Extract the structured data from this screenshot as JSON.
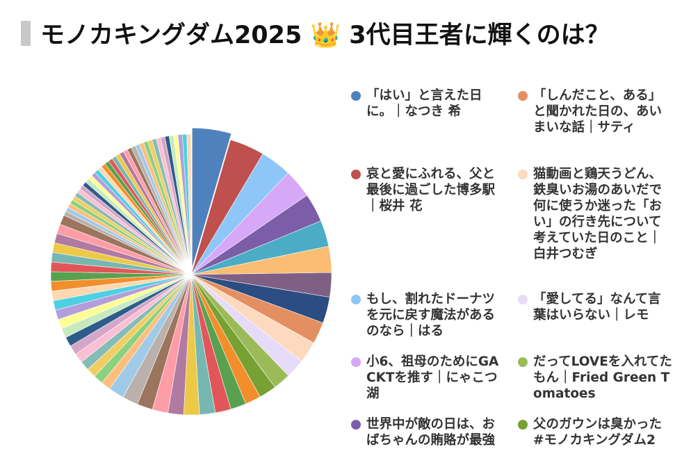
{
  "chart_data": {
    "type": "pie",
    "title": "モノカキングダム2025 👑 3代目王者に輝くのは？",
    "categories": [
      "「はい」と言えた日に。｜なつき 希",
      "哀と愛にふれる、父と最後に過ごした博多駅｜桜井 花",
      "もし、割れたドーナツを元に戻す魔法があるのなら｜はる",
      "小6、祖母のためにGACKTを推す｜にゃこつ湖",
      "世界中が敵の日は、おばちゃんの賄賂が最強",
      null,
      null,
      null,
      null,
      "「しんだこと、ある」と聞かれた日の、あいまいな話｜サティ",
      "猫動画と鶏天うどん、鉄臭いお湯のあいだで何に使うか迷った「おい」の行き先について考えていた日のこと｜白井つむぎ",
      "「愛してる」なんて言葉はいらない｜レモ",
      "だってLOVEを入れてたもん｜Fried Green Tomatoes",
      "父のガウンは臭かった #モノカキングダム2",
      null,
      null,
      null,
      null,
      null,
      null,
      null,
      null,
      null,
      null,
      null,
      null,
      null,
      null,
      null,
      null,
      null,
      null,
      null,
      null,
      null,
      null,
      null,
      null,
      null,
      null,
      null,
      null,
      null,
      null,
      null,
      null,
      null,
      null,
      null,
      null,
      null,
      null,
      null,
      null,
      null,
      null,
      null,
      null,
      null,
      null,
      null,
      null,
      null,
      null,
      null,
      null,
      null,
      null,
      null,
      null,
      null,
      null,
      null,
      null,
      null,
      null,
      null,
      null,
      null,
      null
    ],
    "values": [
      4.5,
      4,
      3.6,
      3.3,
      3.3,
      3,
      3,
      2.8,
      3,
      2.5,
      2.5,
      2.2,
      2,
      2,
      1.8,
      1.8,
      1.8,
      1.8,
      1.8,
      1.8,
      1.8,
      1.8,
      1.8,
      1.8,
      1.1,
      1.1,
      1.1,
      1.1,
      1.1,
      1.1,
      1.1,
      1.1,
      1.1,
      1.1,
      1.1,
      1.1,
      1.1,
      1.1,
      1.1,
      1.1,
      1.1,
      1.1,
      1.1,
      1.1,
      0.5,
      0.5,
      0.5,
      0.5,
      0.5,
      0.5,
      0.5,
      0.5,
      0.5,
      0.5,
      0.5,
      0.5,
      0.5,
      0.5,
      0.5,
      0.5,
      0.5,
      0.5,
      0.5,
      0.5,
      0.5,
      0.5,
      0.5,
      0.5,
      0.5,
      0.5,
      0.5,
      0.5,
      0.5,
      0.5,
      0.5,
      0.5,
      0.5,
      0.5,
      0.5,
      0.5
    ],
    "colors": [
      "#4f81bd",
      "#c0504d",
      "#8ec6f8",
      "#d6a8f7",
      "#7b5ea7",
      "#4bacc6",
      "#fbbd73",
      "#7f6084",
      "#2c4d82",
      "#e48f62",
      "#fdd9bd",
      "#e6dbf8",
      "#9bbb59",
      "#77a132",
      "#f28e2b",
      "#59a14f",
      "#e15759",
      "#76b7b2",
      "#edc948",
      "#b07aa1",
      "#ff9da7",
      "#9c755f",
      "#bab0ac",
      "#a0cbe8",
      "#ffbe7d",
      "#8cd17d",
      "#f1ce63",
      "#86bcb6",
      "#fabfd2",
      "#d4a6c8",
      "#2e5d8a",
      "#c7e9c0",
      "#fdfd96",
      "#b39ddb",
      "#4dd0e1",
      "#ffd8b1",
      "#f28e2b",
      "#59a14f",
      "#e15759",
      "#76b7b2",
      "#edc948",
      "#b07aa1",
      "#ff9da7",
      "#9c755f",
      "#bab0ac",
      "#a0cbe8",
      "#ffbe7d",
      "#8cd17d",
      "#f1ce63",
      "#86bcb6",
      "#fabfd2",
      "#d4a6c8",
      "#2e5d8a",
      "#c7e9c0",
      "#fdfd96",
      "#b39ddb",
      "#4dd0e1",
      "#ffd8b1",
      "#f28e2b",
      "#59a14f",
      "#e15759",
      "#76b7b2",
      "#edc948",
      "#b07aa1",
      "#ff9da7",
      "#9c755f",
      "#bab0ac",
      "#a0cbe8",
      "#ffbe7d",
      "#8cd17d",
      "#f1ce63",
      "#86bcb6",
      "#fabfd2",
      "#d4a6c8",
      "#2e5d8a",
      "#c7e9c0",
      "#fdfd96",
      "#b39ddb",
      "#4dd0e1",
      "#ffd8b1"
    ],
    "legend": "right"
  }
}
